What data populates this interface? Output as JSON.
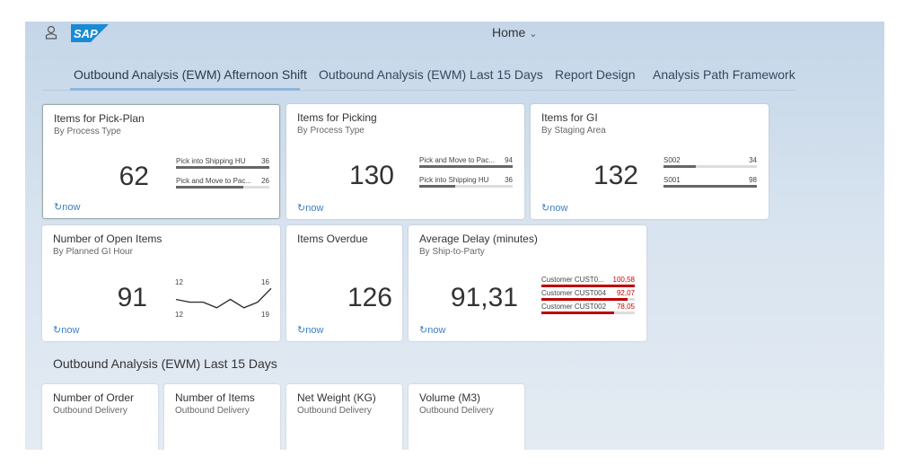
{
  "header": {
    "logo": "SAP",
    "home_label": "Home",
    "user_icon": "user-icon",
    "brand_color": "#1a8ad4"
  },
  "tabs": [
    {
      "label": "Outbound Analysis (EWM) Afternoon Shift",
      "selected": true
    },
    {
      "label": "Outbound Analysis (EWM) Last 15 Days"
    },
    {
      "label": "Report Design"
    },
    {
      "label": "Analysis Path Framework"
    }
  ],
  "tiles": [
    {
      "title": "Items for Pick-Plan",
      "subtitle": "By Process Type",
      "value": "62",
      "footer": "now",
      "bars": [
        {
          "label": "Pick into Shipping HU",
          "value": "36",
          "pct": 100
        },
        {
          "label": "Pick and Move to Pac...",
          "value": "26",
          "pct": 72
        }
      ]
    },
    {
      "title": "Items for Picking",
      "subtitle": "By Process Type",
      "value": "130",
      "footer": "now",
      "bars": [
        {
          "label": "Pick and Move to Pac...",
          "value": "94",
          "pct": 100
        },
        {
          "label": "Pick into Shipping HU",
          "value": "36",
          "pct": 38
        }
      ]
    },
    {
      "title": "Items for GI",
      "subtitle": "By Staging Area",
      "value": "132",
      "footer": "now",
      "bars": [
        {
          "label": "S002",
          "value": "34",
          "pct": 35
        },
        {
          "label": "S001",
          "value": "98",
          "pct": 100
        }
      ]
    },
    {
      "title": "Number of Open Items",
      "subtitle": "By Planned GI Hour",
      "value": "91",
      "footer": "now",
      "line": {
        "top_left": "12",
        "bottom_left": "12",
        "top_right": "16",
        "bottom_right": "19",
        "points": [
          12,
          11,
          11,
          9,
          12,
          9,
          11,
          16
        ]
      }
    },
    {
      "title": "Items Overdue",
      "subtitle": "",
      "value": "126",
      "footer": "now"
    },
    {
      "title": "Average Delay (minutes)",
      "subtitle": "By Ship-to-Party",
      "value": "91,31",
      "footer": "now",
      "bars": [
        {
          "label": "Customer CUST0...",
          "value": "100,58",
          "pct": 100
        },
        {
          "label": "Customer CUST004",
          "value": "92,07",
          "pct": 92
        },
        {
          "label": "Customer CUST002",
          "value": "78,05",
          "pct": 78
        }
      ]
    }
  ],
  "section": {
    "title": "Outbound Analysis (EWM) Last 15 Days",
    "tiles": [
      {
        "title": "Number of Order",
        "subtitle": "Outbound Delivery"
      },
      {
        "title": "Number of Items",
        "subtitle": "Outbound Delivery"
      },
      {
        "title": "Net Weight (KG)",
        "subtitle": "Outbound Delivery"
      },
      {
        "title": "Volume (M3)",
        "subtitle": "Outbound Delivery"
      }
    ]
  }
}
